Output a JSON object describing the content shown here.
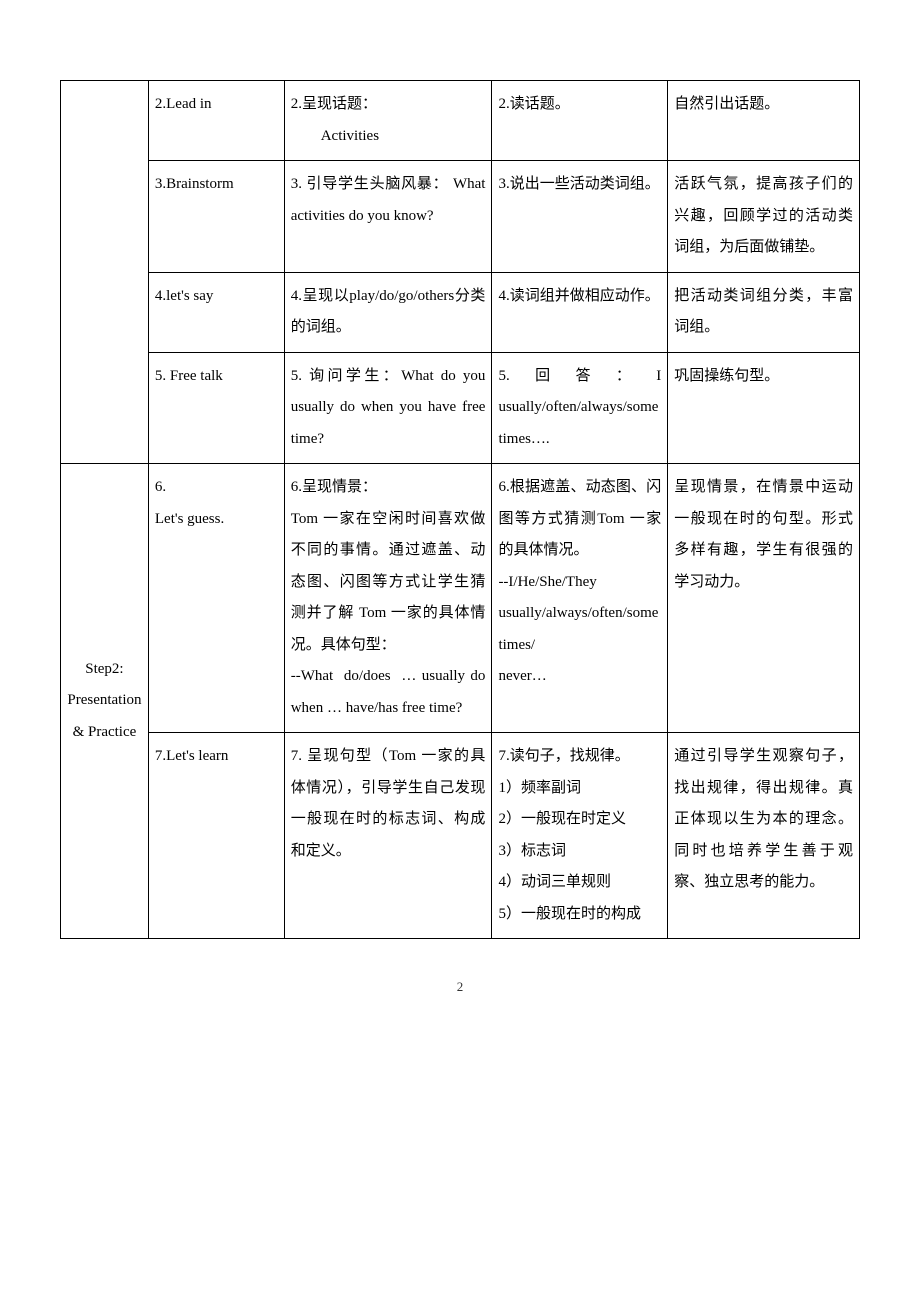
{
  "table": {
    "rows": [
      {
        "col1": "",
        "col2": "2.Lead in",
        "col3": "2.呈现话题：\n    Activities",
        "col4": "2.读话题。",
        "col5": "自然引出话题。"
      },
      {
        "col1": "",
        "col2": "3.Brainstorm",
        "col3": "3. 引导学生头脑风暴： What activities do you know?",
        "col4": "3.说出一些活动类词组。",
        "col5": "活跃气氛，提高孩子们的兴趣，回顾学过的活动类词组，为后面做铺垫。"
      },
      {
        "col1": "",
        "col2": "4.let's say",
        "col3": "4.呈现以play/do/go/others分类的词组。",
        "col4": "4.读词组并做相应动作。",
        "col5": "把活动类词组分类，丰富词组。"
      },
      {
        "col1": "",
        "col2": "5. Free talk",
        "col3": "5. 询问学生：What do you usually do when you have free time?",
        "col4": "5.回答：I usually/often/always/sometimes….",
        "col5": "巩固操练句型。"
      },
      {
        "col1": "Step2: Presentation & Practice",
        "col2": "6.\nLet's guess.",
        "col3": "6.呈现情景：\nTom 一家在空闲时间喜欢做不同的事情。通过遮盖、动态图、闪图等方式让学生猜测并了解 Tom 一家的具体情况。具体句型：\n--What do/does … usually do when … have/has free time?",
        "col4": "6.根据遮盖、动态图、闪图等方式猜测Tom 一家的具体情况。\n--I/He/She/They usually/always/often/sometimes/\nnever…",
        "col5": "呈现情景，在情景中运动一般现在时的句型。形式多样有趣，学生有很强的学习动力。"
      },
      {
        "col1": "",
        "col2": "7.Let's learn",
        "col3": "7. 呈现句型（Tom 一家的具体情况），引导学生自己发现一般现在时的标志词、构成和定义。",
        "col4": "7.读句子，找规律。\n1）频率副词\n2）一般现在时定义\n3）标志词\n4）动词三单规则\n5）一般现在时的构成",
        "col5": "通过引导学生观察句子，找出规律，得出规律。真正体现以生为本的理念。同时也培养学生善于观察、独立思考的能力。"
      }
    ]
  },
  "pageNumber": "2",
  "styling": {
    "backgroundColor": "#ffffff",
    "borderColor": "#000000",
    "textColor": "#000000",
    "fontSize": 15,
    "lineHeight": 2.1,
    "columnWidths": [
      "11%",
      "17%",
      "26%",
      "22%",
      "24%"
    ]
  }
}
